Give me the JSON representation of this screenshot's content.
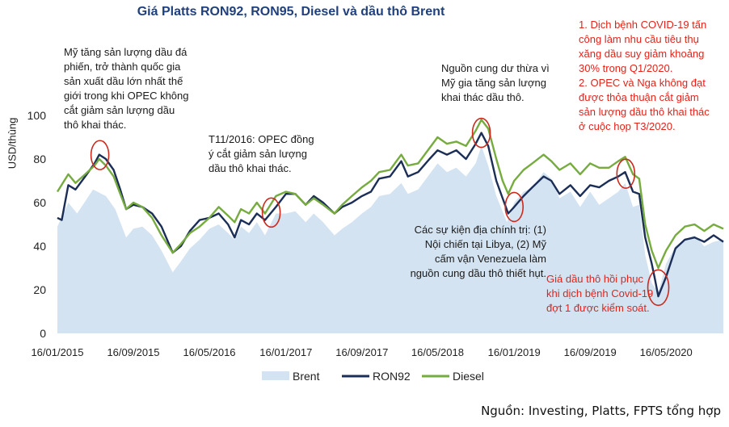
{
  "source_note": "Nguồn: Investing, Platts, FPTS tổng hợp",
  "annotations": {
    "a1": [
      "Mỹ tăng sản lượng dầu đá",
      "phiến, trở thành quốc gia",
      "sản xuất dầu lớn nhất thế",
      "giới trong khi OPEC không",
      "cắt giảm sản lượng dầu",
      "thô khai thác."
    ],
    "a2": [
      "T11/2016: OPEC đồng",
      "ý cắt giảm sản lượng",
      "dầu thô khai thác."
    ],
    "a3": [
      "Nguồn cung dư thừa vì",
      "Mỹ gia tăng sản lượng",
      "khai thác dầu thô."
    ],
    "a4": [
      "Các sự kiện địa chính trị: (1)",
      "Nội chiến tại Libya, (2) Mỹ",
      "cấm vận Venezuela làm",
      "nguồn cung dầu thô thiết hụt."
    ],
    "a5": [
      "1. Dịch bệnh COVID-19 tấn",
      "công làm nhu cầu tiêu thụ",
      "xăng dầu suy giảm khoảng",
      "30% trong Q1/2020.",
      "2. OPEC và Nga không đạt",
      "được thỏa thuận cắt giảm",
      "sản lượng dầu thô khai thác",
      "ở cuộc họp T3/2020."
    ],
    "a6": [
      "Giá dầu thô hồi phục",
      "khi dịch bệnh Covid-19",
      "đợt 1 được kiểm soát."
    ]
  },
  "colors": {
    "brent": "#d4e3f1",
    "ron92": "#1b2e57",
    "diesel": "#76ac3f",
    "title": "#1f3f7f",
    "red": "#e2231a",
    "circle": "#cc2a1e"
  },
  "chart_data": {
    "type": "line",
    "title": "Giá Platts RON92, RON95, Diesel và dầu thô Brent",
    "xlabel": "",
    "ylabel": "USD/thùng",
    "ylim": [
      0,
      100
    ],
    "yticks": [
      0,
      20,
      40,
      60,
      80,
      100
    ],
    "xlim": [
      "2015-01-16",
      "2020-11-15"
    ],
    "xticks": [
      "16/01/2015",
      "16/09/2015",
      "16/05/2016",
      "16/01/2017",
      "16/09/2017",
      "16/05/2018",
      "16/01/2019",
      "16/09/2019",
      "16/05/2020"
    ],
    "xtick_dates": [
      "2015-01-16",
      "2015-09-16",
      "2016-05-16",
      "2017-01-16",
      "2017-09-16",
      "2018-05-16",
      "2019-01-16",
      "2019-09-16",
      "2020-05-16"
    ],
    "grid": false,
    "legend": "bottom",
    "series": [
      {
        "name": "Brent",
        "kind": "area",
        "points": [
          [
            "2015-01-16",
            49
          ],
          [
            "2015-02-20",
            60
          ],
          [
            "2015-03-20",
            55
          ],
          [
            "2015-05-10",
            66
          ],
          [
            "2015-06-20",
            63
          ],
          [
            "2015-07-20",
            57
          ],
          [
            "2015-08-24",
            44
          ],
          [
            "2015-09-16",
            48
          ],
          [
            "2015-10-15",
            49
          ],
          [
            "2015-11-15",
            45
          ],
          [
            "2015-12-15",
            38
          ],
          [
            "2016-01-20",
            28
          ],
          [
            "2016-02-15",
            33
          ],
          [
            "2016-03-15",
            39
          ],
          [
            "2016-04-15",
            43
          ],
          [
            "2016-05-16",
            48
          ],
          [
            "2016-06-15",
            50
          ],
          [
            "2016-07-15",
            46
          ],
          [
            "2016-08-05",
            43
          ],
          [
            "2016-08-25",
            49
          ],
          [
            "2016-09-20",
            46
          ],
          [
            "2016-10-15",
            51
          ],
          [
            "2016-11-10",
            45
          ],
          [
            "2016-12-15",
            55
          ],
          [
            "2017-01-16",
            55
          ],
          [
            "2017-02-15",
            56
          ],
          [
            "2017-03-20",
            51
          ],
          [
            "2017-04-15",
            55
          ],
          [
            "2017-05-15",
            51
          ],
          [
            "2017-06-20",
            45
          ],
          [
            "2017-07-15",
            48
          ],
          [
            "2017-08-15",
            51
          ],
          [
            "2017-09-16",
            55
          ],
          [
            "2017-10-15",
            58
          ],
          [
            "2017-11-10",
            63
          ],
          [
            "2017-12-15",
            64
          ],
          [
            "2018-01-20",
            69
          ],
          [
            "2018-02-10",
            64
          ],
          [
            "2018-03-15",
            66
          ],
          [
            "2018-04-20",
            73
          ],
          [
            "2018-05-16",
            78
          ],
          [
            "2018-06-15",
            74
          ],
          [
            "2018-07-15",
            76
          ],
          [
            "2018-08-15",
            72
          ],
          [
            "2018-09-15",
            78
          ],
          [
            "2018-10-03",
            86
          ],
          [
            "2018-10-25",
            77
          ],
          [
            "2018-11-20",
            63
          ],
          [
            "2018-12-24",
            51
          ],
          [
            "2019-01-16",
            60
          ],
          [
            "2019-02-15",
            65
          ],
          [
            "2019-03-15",
            67
          ],
          [
            "2019-04-20",
            74
          ],
          [
            "2019-05-15",
            71
          ],
          [
            "2019-06-10",
            62
          ],
          [
            "2019-07-15",
            65
          ],
          [
            "2019-08-15",
            58
          ],
          [
            "2019-09-16",
            65
          ],
          [
            "2019-10-15",
            59
          ],
          [
            "2019-11-15",
            62
          ],
          [
            "2019-12-15",
            65
          ],
          [
            "2020-01-06",
            69
          ],
          [
            "2020-01-31",
            58
          ],
          [
            "2020-02-20",
            59
          ],
          [
            "2020-03-10",
            36
          ],
          [
            "2020-03-31",
            23
          ],
          [
            "2020-04-21",
            19
          ],
          [
            "2020-05-16",
            32
          ],
          [
            "2020-06-15",
            40
          ],
          [
            "2020-07-15",
            43
          ],
          [
            "2020-08-15",
            45
          ],
          [
            "2020-09-15",
            40
          ],
          [
            "2020-10-15",
            42
          ],
          [
            "2020-11-15",
            43
          ]
        ]
      },
      {
        "name": "RON92",
        "kind": "line",
        "points": [
          [
            "2015-01-16",
            53
          ],
          [
            "2015-01-30",
            52
          ],
          [
            "2015-02-20",
            68
          ],
          [
            "2015-03-15",
            66
          ],
          [
            "2015-04-15",
            72
          ],
          [
            "2015-05-15",
            78
          ],
          [
            "2015-05-30",
            82
          ],
          [
            "2015-06-20",
            80
          ],
          [
            "2015-07-15",
            75
          ],
          [
            "2015-08-05",
            66
          ],
          [
            "2015-08-24",
            57
          ],
          [
            "2015-09-16",
            59
          ],
          [
            "2015-10-15",
            58
          ],
          [
            "2015-11-15",
            55
          ],
          [
            "2015-12-15",
            49
          ],
          [
            "2016-01-20",
            37
          ],
          [
            "2016-02-15",
            40
          ],
          [
            "2016-03-15",
            47
          ],
          [
            "2016-04-15",
            52
          ],
          [
            "2016-05-16",
            53
          ],
          [
            "2016-06-15",
            55
          ],
          [
            "2016-07-15",
            50
          ],
          [
            "2016-08-05",
            44
          ],
          [
            "2016-08-25",
            52
          ],
          [
            "2016-09-20",
            50
          ],
          [
            "2016-10-15",
            55
          ],
          [
            "2016-11-10",
            52
          ],
          [
            "2016-12-15",
            58
          ],
          [
            "2017-01-16",
            64
          ],
          [
            "2017-02-15",
            64
          ],
          [
            "2017-03-20",
            59
          ],
          [
            "2017-04-15",
            63
          ],
          [
            "2017-05-15",
            60
          ],
          [
            "2017-06-20",
            55
          ],
          [
            "2017-07-15",
            58
          ],
          [
            "2017-08-15",
            60
          ],
          [
            "2017-09-16",
            63
          ],
          [
            "2017-10-15",
            65
          ],
          [
            "2017-11-10",
            71
          ],
          [
            "2017-12-15",
            72
          ],
          [
            "2018-01-20",
            79
          ],
          [
            "2018-02-10",
            72
          ],
          [
            "2018-03-15",
            74
          ],
          [
            "2018-04-20",
            80
          ],
          [
            "2018-05-16",
            84
          ],
          [
            "2018-06-15",
            82
          ],
          [
            "2018-07-15",
            84
          ],
          [
            "2018-08-15",
            80
          ],
          [
            "2018-09-15",
            87
          ],
          [
            "2018-10-03",
            92
          ],
          [
            "2018-10-25",
            86
          ],
          [
            "2018-11-20",
            70
          ],
          [
            "2018-12-10",
            62
          ],
          [
            "2018-12-28",
            55
          ],
          [
            "2019-01-16",
            58
          ],
          [
            "2019-02-15",
            63
          ],
          [
            "2019-03-15",
            67
          ],
          [
            "2019-04-20",
            72
          ],
          [
            "2019-05-15",
            70
          ],
          [
            "2019-06-10",
            64
          ],
          [
            "2019-07-15",
            68
          ],
          [
            "2019-08-15",
            63
          ],
          [
            "2019-09-16",
            68
          ],
          [
            "2019-10-15",
            67
          ],
          [
            "2019-11-15",
            70
          ],
          [
            "2019-12-15",
            72
          ],
          [
            "2020-01-06",
            74
          ],
          [
            "2020-01-31",
            65
          ],
          [
            "2020-02-20",
            64
          ],
          [
            "2020-03-10",
            44
          ],
          [
            "2020-03-31",
            32
          ],
          [
            "2020-04-10",
            25
          ],
          [
            "2020-04-21",
            17
          ],
          [
            "2020-05-16",
            26
          ],
          [
            "2020-06-15",
            39
          ],
          [
            "2020-07-15",
            43
          ],
          [
            "2020-08-15",
            44
          ],
          [
            "2020-09-15",
            42
          ],
          [
            "2020-10-15",
            45
          ],
          [
            "2020-11-15",
            42
          ]
        ]
      },
      {
        "name": "Diesel",
        "kind": "line",
        "points": [
          [
            "2015-01-16",
            65
          ],
          [
            "2015-02-20",
            73
          ],
          [
            "2015-03-15",
            69
          ],
          [
            "2015-04-15",
            73
          ],
          [
            "2015-05-15",
            77
          ],
          [
            "2015-05-30",
            80
          ],
          [
            "2015-06-20",
            77
          ],
          [
            "2015-07-15",
            72
          ],
          [
            "2015-08-05",
            64
          ],
          [
            "2015-08-24",
            57
          ],
          [
            "2015-09-16",
            60
          ],
          [
            "2015-10-15",
            58
          ],
          [
            "2015-11-15",
            53
          ],
          [
            "2015-12-15",
            45
          ],
          [
            "2016-01-20",
            37
          ],
          [
            "2016-02-15",
            41
          ],
          [
            "2016-03-15",
            46
          ],
          [
            "2016-04-15",
            49
          ],
          [
            "2016-05-16",
            53
          ],
          [
            "2016-06-15",
            58
          ],
          [
            "2016-07-15",
            54
          ],
          [
            "2016-08-05",
            51
          ],
          [
            "2016-08-25",
            57
          ],
          [
            "2016-09-20",
            55
          ],
          [
            "2016-10-15",
            60
          ],
          [
            "2016-11-10",
            55
          ],
          [
            "2016-12-15",
            63
          ],
          [
            "2017-01-16",
            65
          ],
          [
            "2017-02-15",
            64
          ],
          [
            "2017-03-20",
            59
          ],
          [
            "2017-04-15",
            62
          ],
          [
            "2017-05-15",
            59
          ],
          [
            "2017-06-20",
            55
          ],
          [
            "2017-07-15",
            59
          ],
          [
            "2017-08-15",
            63
          ],
          [
            "2017-09-16",
            67
          ],
          [
            "2017-10-15",
            70
          ],
          [
            "2017-11-10",
            74
          ],
          [
            "2017-12-15",
            75
          ],
          [
            "2018-01-20",
            82
          ],
          [
            "2018-02-10",
            77
          ],
          [
            "2018-03-15",
            78
          ],
          [
            "2018-04-20",
            85
          ],
          [
            "2018-05-16",
            90
          ],
          [
            "2018-06-15",
            87
          ],
          [
            "2018-07-15",
            88
          ],
          [
            "2018-08-15",
            86
          ],
          [
            "2018-09-15",
            93
          ],
          [
            "2018-10-03",
            98
          ],
          [
            "2018-10-25",
            94
          ],
          [
            "2018-11-20",
            80
          ],
          [
            "2018-12-10",
            70
          ],
          [
            "2018-12-28",
            64
          ],
          [
            "2019-01-16",
            70
          ],
          [
            "2019-02-15",
            75
          ],
          [
            "2019-03-15",
            78
          ],
          [
            "2019-04-20",
            82
          ],
          [
            "2019-05-15",
            79
          ],
          [
            "2019-06-10",
            75
          ],
          [
            "2019-07-15",
            78
          ],
          [
            "2019-08-15",
            73
          ],
          [
            "2019-09-16",
            78
          ],
          [
            "2019-10-15",
            76
          ],
          [
            "2019-11-15",
            76
          ],
          [
            "2019-12-15",
            79
          ],
          [
            "2020-01-06",
            81
          ],
          [
            "2020-01-31",
            73
          ],
          [
            "2020-02-20",
            71
          ],
          [
            "2020-03-10",
            50
          ],
          [
            "2020-03-31",
            38
          ],
          [
            "2020-04-21",
            30
          ],
          [
            "2020-05-16",
            38
          ],
          [
            "2020-06-15",
            45
          ],
          [
            "2020-07-15",
            49
          ],
          [
            "2020-08-15",
            50
          ],
          [
            "2020-09-15",
            47
          ],
          [
            "2020-10-15",
            50
          ],
          [
            "2020-11-15",
            48
          ]
        ]
      }
    ],
    "highlight_circles": [
      "2015-06-01",
      "2016-11-30",
      "2018-10-03",
      "2019-01-16",
      "2020-01-08",
      "2020-04-21"
    ]
  }
}
